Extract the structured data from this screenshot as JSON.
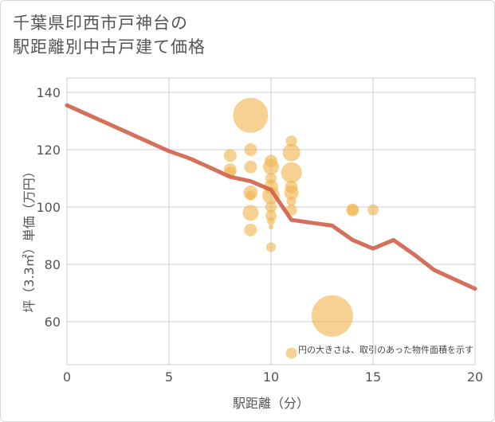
{
  "title_lines": [
    "千葉県印西市戸神台の",
    "駅距離別中古戸建て価格"
  ],
  "chart_data": {
    "type": "scatter",
    "xlabel": "駅距離（分）",
    "ylabel": "坪（3.3㎡）単価（万円）",
    "xlim": [
      0,
      20
    ],
    "ylim": [
      45,
      145
    ],
    "xticks": [
      0,
      5,
      10,
      15,
      20
    ],
    "yticks": [
      60,
      80,
      100,
      120,
      140
    ],
    "grid": true,
    "note": "円の大きさは、取引のあった物件面積を示す",
    "bubble_color": "#f0b54d",
    "line_color": "#d0604a",
    "points": [
      {
        "x": 9,
        "y": 132,
        "size": 22
      },
      {
        "x": 8,
        "y": 118,
        "size": 8
      },
      {
        "x": 8,
        "y": 113,
        "size": 8
      },
      {
        "x": 8,
        "y": 112,
        "size": 7
      },
      {
        "x": 9,
        "y": 120,
        "size": 8
      },
      {
        "x": 9,
        "y": 114,
        "size": 8
      },
      {
        "x": 9,
        "y": 105,
        "size": 9
      },
      {
        "x": 9,
        "y": 104,
        "size": 6
      },
      {
        "x": 9,
        "y": 98,
        "size": 10
      },
      {
        "x": 9,
        "y": 92,
        "size": 8
      },
      {
        "x": 10,
        "y": 116,
        "size": 8
      },
      {
        "x": 10,
        "y": 114,
        "size": 10
      },
      {
        "x": 10,
        "y": 110,
        "size": 7
      },
      {
        "x": 10,
        "y": 107,
        "size": 9
      },
      {
        "x": 10,
        "y": 104,
        "size": 11
      },
      {
        "x": 10,
        "y": 100,
        "size": 7
      },
      {
        "x": 10,
        "y": 97,
        "size": 7
      },
      {
        "x": 10,
        "y": 95,
        "size": 5
      },
      {
        "x": 10,
        "y": 93,
        "size": 3
      },
      {
        "x": 10,
        "y": 86,
        "size": 6
      },
      {
        "x": 11,
        "y": 123,
        "size": 7
      },
      {
        "x": 11,
        "y": 119,
        "size": 11
      },
      {
        "x": 11,
        "y": 112,
        "size": 13
      },
      {
        "x": 11,
        "y": 107,
        "size": 8
      },
      {
        "x": 11,
        "y": 105,
        "size": 9
      },
      {
        "x": 11,
        "y": 102,
        "size": 6
      },
      {
        "x": 11,
        "y": 99,
        "size": 7
      },
      {
        "x": 11,
        "y": 49,
        "size": 7
      },
      {
        "x": 13,
        "y": 62,
        "size": 26
      },
      {
        "x": 14,
        "y": 99,
        "size": 8
      },
      {
        "x": 14,
        "y": 99,
        "size": 7
      },
      {
        "x": 15,
        "y": 99,
        "size": 7
      }
    ],
    "line": {
      "x": [
        0,
        5,
        6,
        7,
        8,
        9,
        10,
        11,
        12,
        13,
        14,
        15,
        16,
        17,
        18,
        20
      ],
      "y": [
        135.5,
        119.5,
        117,
        113.8,
        110.5,
        109,
        106,
        95.5,
        94.5,
        93.5,
        88.5,
        85.5,
        88.5,
        83.5,
        78,
        71.5
      ]
    }
  }
}
